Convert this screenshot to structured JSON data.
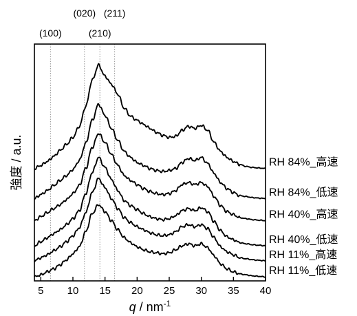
{
  "chart_data": {
    "type": "line",
    "ylabel": "強度 / a.u.",
    "xlabel": {
      "symbol": "q",
      "rest": " / nm",
      "sup": "-1"
    },
    "xlim": [
      4,
      40
    ],
    "xticks": [
      5,
      10,
      15,
      20,
      25,
      30,
      35,
      40
    ],
    "tick_labels": [
      "5",
      "10",
      "15",
      "20",
      "25",
      "30",
      "35",
      "40"
    ],
    "y_ticks_shown": false,
    "grid": false,
    "reference_lines": [
      {
        "label": "(100)",
        "q": 6.5
      },
      {
        "label": "(020)",
        "q": 11.8
      },
      {
        "label": "(210)",
        "q": 14.2
      },
      {
        "label": "(211)",
        "q": 16.5
      }
    ],
    "profile_points_q": [
      4,
      5,
      6,
      7,
      8,
      9,
      10,
      11,
      12,
      13,
      14,
      15,
      16,
      17,
      18,
      19,
      20,
      21,
      22,
      23,
      24,
      25,
      26,
      27,
      28,
      29,
      30,
      31,
      32,
      33,
      34,
      35,
      36,
      37,
      38,
      39,
      40
    ],
    "series": [
      {
        "name": "RH 84%_高速",
        "values": [
          0,
          3,
          7,
          12,
          18,
          24,
          31,
          42,
          62,
          88,
          103,
          92,
          84,
          74,
          60,
          52,
          48,
          44,
          40,
          36,
          33,
          31,
          32,
          38,
          42,
          40,
          43,
          38,
          26,
          17,
          11,
          7,
          4,
          2,
          1,
          0.5,
          0
        ]
      },
      {
        "name": "RH 84%_低速",
        "values": [
          0,
          4,
          8,
          13,
          18,
          23,
          29,
          38,
          55,
          78,
          94,
          83,
          70,
          58,
          47,
          41,
          36,
          33,
          30,
          28,
          27,
          28,
          30,
          36,
          40,
          38,
          41,
          35,
          25,
          16,
          10,
          6,
          3,
          2,
          1,
          0.5,
          0
        ]
      },
      {
        "name": "RH 40%_高速",
        "values": [
          0,
          4,
          8,
          12,
          16,
          21,
          27,
          35,
          52,
          73,
          87,
          78,
          66,
          55,
          45,
          40,
          36,
          32,
          29,
          27,
          26,
          27,
          30,
          36,
          38,
          36,
          38,
          34,
          24,
          15,
          9,
          6,
          3,
          2,
          1,
          0.5,
          0
        ]
      },
      {
        "name": "RH 40%_低速",
        "values": [
          0,
          4,
          8,
          12,
          16,
          21,
          27,
          35,
          52,
          73,
          88,
          78,
          66,
          55,
          45,
          40,
          36,
          32,
          29,
          27,
          26,
          27,
          30,
          35,
          37,
          35,
          38,
          34,
          24,
          15,
          9,
          6,
          3,
          2,
          1,
          0.5,
          0
        ]
      },
      {
        "name": "RH 11%_高速",
        "values": [
          0,
          3,
          6,
          10,
          14,
          19,
          25,
          33,
          48,
          68,
          82,
          73,
          62,
          52,
          43,
          38,
          34,
          31,
          28,
          26,
          25,
          26,
          29,
          34,
          36,
          34,
          36,
          32,
          23,
          14,
          9,
          6,
          3,
          2,
          1,
          0.5,
          0
        ]
      },
      {
        "name": "RH 11%_低速",
        "values": [
          0,
          2,
          5,
          8,
          12,
          17,
          23,
          30,
          45,
          63,
          72,
          65,
          56,
          47,
          39,
          34,
          30,
          27,
          25,
          24,
          23,
          24,
          27,
          31,
          33,
          31,
          33,
          29,
          21,
          13,
          8,
          5,
          3,
          2,
          1,
          0.5,
          0
        ]
      }
    ],
    "offsets": [
      108,
      78,
      56,
      31,
      16,
      0
    ],
    "ylim": [
      -4,
      232
    ]
  }
}
